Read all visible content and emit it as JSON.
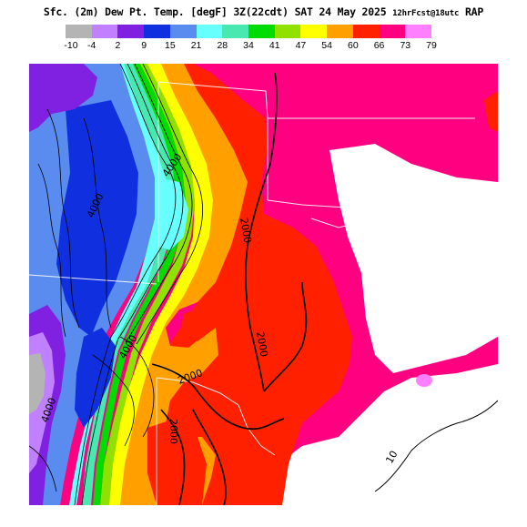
{
  "title": {
    "product": "Sfc. (2m) Dew Pt. Temp. [degF]",
    "valid": "3Z(22cdt) SAT 24 May 2025",
    "run": "12hrFcst@18utc",
    "model": "RAP"
  },
  "legend": {
    "labels": [
      "-10",
      "-4",
      "2",
      "9",
      "15",
      "21",
      "28",
      "34",
      "41",
      "47",
      "54",
      "60",
      "66",
      "73",
      "79"
    ],
    "colors": [
      "#b4b4b4",
      "#c080ff",
      "#8020e0",
      "#1030e0",
      "#5a8cf0",
      "#68ffff",
      "#48e8b0",
      "#00dc00",
      "#90e000",
      "#ffff00",
      "#ffa000",
      "#ff2000",
      "#ff0080",
      "#ff80ff",
      "#ffffff"
    ]
  },
  "map": {
    "contour_labels": [
      "4000",
      "4000",
      "2000",
      "2000",
      "2000",
      "4000",
      "4000",
      "2000",
      "10"
    ]
  }
}
